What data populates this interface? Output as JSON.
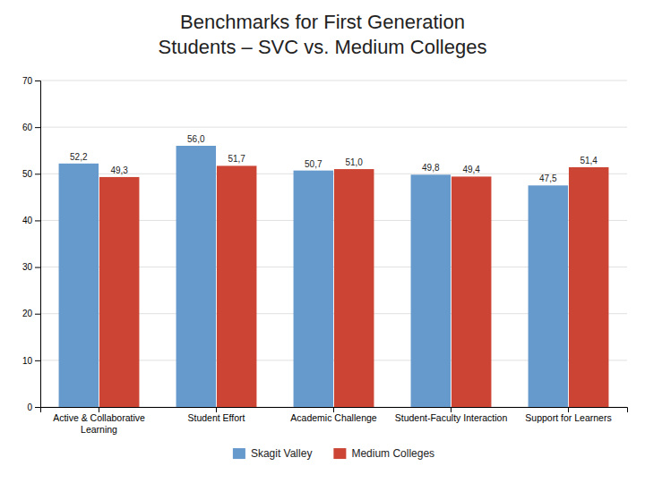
{
  "chart_data": {
    "type": "bar",
    "title": "Benchmarks for First Generation\nStudents – SVC vs. Medium Colleges",
    "categories": [
      "Active & Collaborative\nLearning",
      "Student Effort",
      "Academic Challenge",
      "Student-Faculty Interaction",
      "Support for Learners"
    ],
    "series": [
      {
        "name": "Skagit Valley",
        "color": "#6699CC",
        "values": [
          52.2,
          56.0,
          50.7,
          49.8,
          47.5
        ],
        "value_labels": [
          "52,2",
          "56,0",
          "50,7",
          "49,8",
          "47,5"
        ]
      },
      {
        "name": "Medium Colleges",
        "color": "#CC4433",
        "values": [
          49.3,
          51.7,
          51.0,
          49.4,
          51.4
        ],
        "value_labels": [
          "49,3",
          "51,7",
          "51,0",
          "49,4",
          "51,4"
        ]
      }
    ],
    "ylim": [
      0,
      70
    ],
    "yticks": [
      0,
      10,
      20,
      30,
      40,
      50,
      60,
      70
    ],
    "grid": true,
    "legend": "bottom",
    "data_labels": true
  }
}
